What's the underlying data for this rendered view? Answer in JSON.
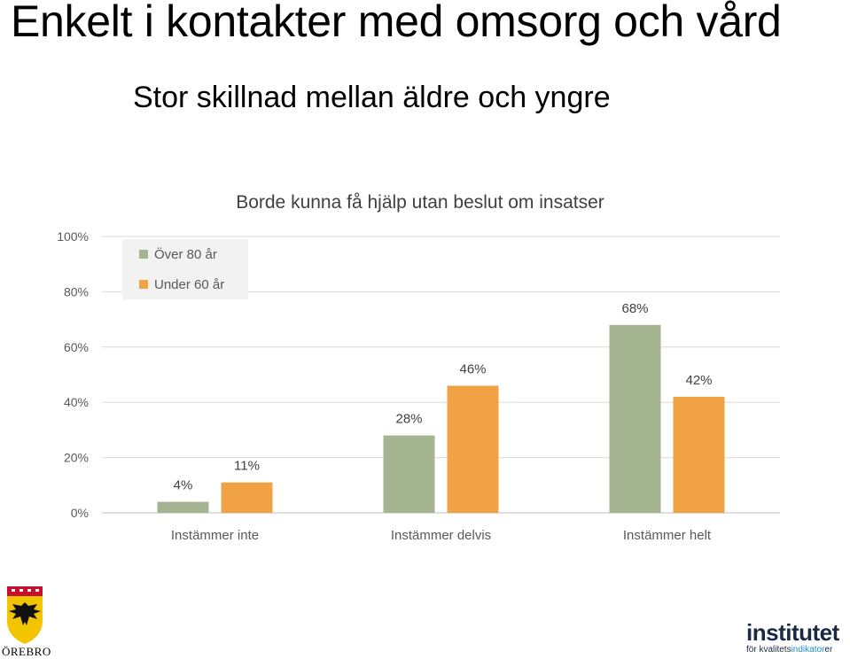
{
  "slide": {
    "title": "Enkelt i kontakter med omsorg och vård",
    "subtitle": "Stor skillnad mellan äldre och yngre"
  },
  "logos": {
    "orebro": "ÖREBRO",
    "institutet_word": "institutet",
    "institutet_sub_a": "för kvalitets",
    "institutet_sub_b": "indikator",
    "institutet_sub_c": "er"
  },
  "chart_data": {
    "type": "bar",
    "title": "Borde kunna få hjälp utan beslut om insatser",
    "categories": [
      "Instämmer inte",
      "Instämmer delvis",
      "Instämmer helt"
    ],
    "series": [
      {
        "name": "Över 80 år",
        "values": [
          4,
          28,
          68
        ],
        "labels": [
          "4%",
          "28%",
          "68%"
        ],
        "color": "#a5b592"
      },
      {
        "name": "Under 60 år",
        "values": [
          11,
          46,
          42
        ],
        "labels": [
          "11%",
          "46%",
          "42%"
        ],
        "color": "#f1a244"
      }
    ],
    "ylim": [
      0,
      100
    ],
    "yticks": [
      "0%",
      "20%",
      "40%",
      "60%",
      "80%",
      "100%"
    ],
    "grid": true,
    "legend_position": "top-left"
  }
}
